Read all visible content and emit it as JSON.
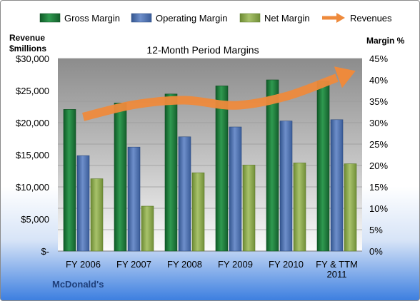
{
  "chart_data": {
    "type": "bar",
    "title": "12-Month Period Margins",
    "footer": "McDonald's",
    "left_axis": {
      "title_line1": "Revenue",
      "title_line2": "$millions",
      "range": [
        0,
        30000
      ],
      "ticks": [
        "$-",
        "$5,000",
        "$10,000",
        "$15,000",
        "$20,000",
        "$25,000",
        "$30,000"
      ]
    },
    "right_axis": {
      "title": "Margin %",
      "range": [
        0,
        45
      ],
      "ticks": [
        "0%",
        "5%",
        "10%",
        "15%",
        "20%",
        "25%",
        "30%",
        "35%",
        "40%",
        "45%"
      ]
    },
    "categories": [
      [
        "FY 2006"
      ],
      [
        "FY 2007"
      ],
      [
        "FY 2008"
      ],
      [
        "FY 2009"
      ],
      [
        "FY 2010"
      ],
      [
        "FY & TTM",
        "2011"
      ]
    ],
    "legend_position": "top",
    "series": [
      {
        "name": "Gross Margin",
        "axis": "right",
        "type": "bar",
        "color": "#1e7a3c",
        "values": [
          33.1,
          34.6,
          36.7,
          38.6,
          40.0,
          39.7
        ]
      },
      {
        "name": "Operating Margin",
        "axis": "right",
        "type": "bar",
        "color": "#4a6fb0",
        "values": [
          22.3,
          24.3,
          26.7,
          29.0,
          30.4,
          30.7
        ]
      },
      {
        "name": "Net Margin",
        "axis": "right",
        "type": "bar",
        "color": "#8caa4e",
        "values": [
          16.9,
          10.5,
          18.3,
          20.1,
          20.6,
          20.4
        ]
      },
      {
        "name": "Revenues",
        "axis": "left",
        "type": "line",
        "color": "#ee8a3c",
        "values": [
          20900,
          22800,
          23500,
          22700,
          24100,
          27000
        ]
      }
    ]
  }
}
